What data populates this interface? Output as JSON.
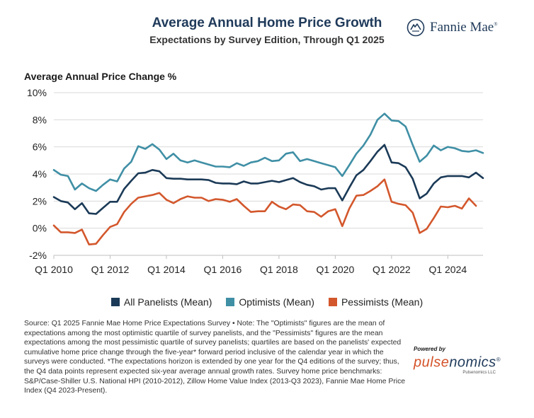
{
  "header": {
    "title": "Average Annual Home Price Growth",
    "subtitle": "Expectations by Survey Edition, Through Q1 2025",
    "brand": "Fannie Mae",
    "brand_mark": "®"
  },
  "chart_data": {
    "type": "line",
    "title": "Average Annual Home Price Growth",
    "subtitle": "Expectations by Survey Edition, Through Q1 2025",
    "ylabel": "Average Annual Price Change %",
    "xlabel": "",
    "ylim": [
      -2,
      10
    ],
    "yticks": [
      -2,
      0,
      2,
      4,
      6,
      8,
      10
    ],
    "ytick_labels": [
      "-2%",
      "0%",
      "2%",
      "4%",
      "6%",
      "8%",
      "10%"
    ],
    "xlim": [
      2010.0,
      2025.25
    ],
    "xticks": [
      2010,
      2012,
      2014,
      2016,
      2018,
      2020,
      2022,
      2024
    ],
    "xtick_labels": [
      "Q1 2010",
      "Q1 2012",
      "Q1 2014",
      "Q1 2016",
      "Q1 2018",
      "Q1 2020",
      "Q1 2022",
      "Q1 2024"
    ],
    "grid": "horizontal",
    "legend_position": "bottom",
    "series": [
      {
        "name": "All Panelists (Mean)",
        "color": "#1b3a57",
        "points": [
          [
            2010.0,
            2.3
          ],
          [
            2010.25,
            2.0
          ],
          [
            2010.5,
            1.9
          ],
          [
            2010.75,
            1.4
          ],
          [
            2011.0,
            1.85
          ],
          [
            2011.25,
            1.1
          ],
          [
            2011.5,
            1.05
          ],
          [
            2011.75,
            1.5
          ],
          [
            2012.0,
            1.95
          ],
          [
            2012.25,
            1.95
          ],
          [
            2012.5,
            2.9
          ],
          [
            2012.75,
            3.5
          ],
          [
            2013.0,
            4.05
          ],
          [
            2013.25,
            4.1
          ],
          [
            2013.5,
            4.3
          ],
          [
            2013.75,
            4.2
          ],
          [
            2014.0,
            3.7
          ],
          [
            2014.25,
            3.65
          ],
          [
            2014.5,
            3.65
          ],
          [
            2014.75,
            3.6
          ],
          [
            2015.0,
            3.6
          ],
          [
            2015.25,
            3.6
          ],
          [
            2015.5,
            3.55
          ],
          [
            2015.75,
            3.35
          ],
          [
            2016.0,
            3.3
          ],
          [
            2016.25,
            3.3
          ],
          [
            2016.5,
            3.25
          ],
          [
            2016.75,
            3.45
          ],
          [
            2017.0,
            3.3
          ],
          [
            2017.25,
            3.3
          ],
          [
            2017.5,
            3.4
          ],
          [
            2017.75,
            3.5
          ],
          [
            2018.0,
            3.4
          ],
          [
            2018.25,
            3.55
          ],
          [
            2018.5,
            3.7
          ],
          [
            2018.75,
            3.4
          ],
          [
            2019.0,
            3.2
          ],
          [
            2019.25,
            3.1
          ],
          [
            2019.5,
            2.85
          ],
          [
            2019.75,
            2.95
          ],
          [
            2020.0,
            2.95
          ],
          [
            2020.25,
            2.05
          ],
          [
            2020.5,
            3.0
          ],
          [
            2020.75,
            3.9
          ],
          [
            2021.0,
            4.3
          ],
          [
            2021.25,
            4.95
          ],
          [
            2021.5,
            5.65
          ],
          [
            2021.75,
            6.15
          ],
          [
            2022.0,
            4.85
          ],
          [
            2022.25,
            4.8
          ],
          [
            2022.5,
            4.5
          ],
          [
            2022.75,
            3.65
          ],
          [
            2023.0,
            2.2
          ],
          [
            2023.25,
            2.55
          ],
          [
            2023.5,
            3.3
          ],
          [
            2023.75,
            3.75
          ],
          [
            2024.0,
            3.85
          ],
          [
            2024.25,
            3.85
          ],
          [
            2024.5,
            3.85
          ],
          [
            2024.75,
            3.75
          ],
          [
            2025.0,
            4.1
          ],
          [
            2025.25,
            3.7
          ]
        ]
      },
      {
        "name": "Optimists (Mean)",
        "color": "#3f8fa5",
        "points": [
          [
            2010.0,
            4.3
          ],
          [
            2010.25,
            3.95
          ],
          [
            2010.5,
            3.85
          ],
          [
            2010.75,
            2.85
          ],
          [
            2011.0,
            3.3
          ],
          [
            2011.25,
            2.95
          ],
          [
            2011.5,
            2.75
          ],
          [
            2011.75,
            3.2
          ],
          [
            2012.0,
            3.6
          ],
          [
            2012.25,
            3.45
          ],
          [
            2012.5,
            4.4
          ],
          [
            2012.75,
            4.9
          ],
          [
            2013.0,
            6.05
          ],
          [
            2013.25,
            5.85
          ],
          [
            2013.5,
            6.2
          ],
          [
            2013.75,
            5.8
          ],
          [
            2014.0,
            5.1
          ],
          [
            2014.25,
            5.5
          ],
          [
            2014.5,
            5.0
          ],
          [
            2014.75,
            4.85
          ],
          [
            2015.0,
            5.0
          ],
          [
            2015.25,
            4.85
          ],
          [
            2015.5,
            4.7
          ],
          [
            2015.75,
            4.55
          ],
          [
            2016.0,
            4.55
          ],
          [
            2016.25,
            4.5
          ],
          [
            2016.5,
            4.8
          ],
          [
            2016.75,
            4.6
          ],
          [
            2017.0,
            4.85
          ],
          [
            2017.25,
            4.95
          ],
          [
            2017.5,
            5.2
          ],
          [
            2017.75,
            4.95
          ],
          [
            2018.0,
            5.0
          ],
          [
            2018.25,
            5.5
          ],
          [
            2018.5,
            5.6
          ],
          [
            2018.75,
            4.95
          ],
          [
            2019.0,
            5.1
          ],
          [
            2019.25,
            4.95
          ],
          [
            2019.5,
            4.8
          ],
          [
            2019.75,
            4.65
          ],
          [
            2020.0,
            4.5
          ],
          [
            2020.25,
            3.85
          ],
          [
            2020.5,
            4.65
          ],
          [
            2020.75,
            5.5
          ],
          [
            2021.0,
            6.1
          ],
          [
            2021.25,
            6.9
          ],
          [
            2021.5,
            8.0
          ],
          [
            2021.75,
            8.45
          ],
          [
            2022.0,
            7.95
          ],
          [
            2022.25,
            7.9
          ],
          [
            2022.5,
            7.5
          ],
          [
            2022.75,
            6.15
          ],
          [
            2023.0,
            4.9
          ],
          [
            2023.25,
            5.35
          ],
          [
            2023.5,
            6.1
          ],
          [
            2023.75,
            5.75
          ],
          [
            2024.0,
            6.0
          ],
          [
            2024.25,
            5.9
          ],
          [
            2024.5,
            5.7
          ],
          [
            2024.75,
            5.65
          ],
          [
            2025.0,
            5.75
          ],
          [
            2025.25,
            5.55
          ]
        ]
      },
      {
        "name": "Pessimists (Mean)",
        "color": "#d3572c",
        "points": [
          [
            2010.0,
            0.2
          ],
          [
            2010.25,
            -0.3
          ],
          [
            2010.5,
            -0.3
          ],
          [
            2010.75,
            -0.35
          ],
          [
            2011.0,
            -0.1
          ],
          [
            2011.25,
            -1.2
          ],
          [
            2011.5,
            -1.15
          ],
          [
            2011.75,
            -0.5
          ],
          [
            2012.0,
            0.1
          ],
          [
            2012.25,
            0.3
          ],
          [
            2012.5,
            1.2
          ],
          [
            2012.75,
            1.8
          ],
          [
            2013.0,
            2.25
          ],
          [
            2013.25,
            2.35
          ],
          [
            2013.5,
            2.45
          ],
          [
            2013.75,
            2.6
          ],
          [
            2014.0,
            2.1
          ],
          [
            2014.25,
            1.85
          ],
          [
            2014.5,
            2.15
          ],
          [
            2014.75,
            2.35
          ],
          [
            2015.0,
            2.25
          ],
          [
            2015.25,
            2.25
          ],
          [
            2015.5,
            2.0
          ],
          [
            2015.75,
            2.15
          ],
          [
            2016.0,
            2.1
          ],
          [
            2016.25,
            1.95
          ],
          [
            2016.5,
            2.15
          ],
          [
            2016.75,
            1.65
          ],
          [
            2017.0,
            1.2
          ],
          [
            2017.25,
            1.25
          ],
          [
            2017.5,
            1.25
          ],
          [
            2017.75,
            1.95
          ],
          [
            2018.0,
            1.6
          ],
          [
            2018.25,
            1.4
          ],
          [
            2018.5,
            1.75
          ],
          [
            2018.75,
            1.7
          ],
          [
            2019.0,
            1.25
          ],
          [
            2019.25,
            1.2
          ],
          [
            2019.5,
            0.85
          ],
          [
            2019.75,
            1.25
          ],
          [
            2020.0,
            1.4
          ],
          [
            2020.25,
            0.15
          ],
          [
            2020.5,
            1.45
          ],
          [
            2020.75,
            2.4
          ],
          [
            2021.0,
            2.45
          ],
          [
            2021.25,
            2.75
          ],
          [
            2021.5,
            3.1
          ],
          [
            2021.75,
            3.6
          ],
          [
            2022.0,
            1.95
          ],
          [
            2022.25,
            1.8
          ],
          [
            2022.5,
            1.7
          ],
          [
            2022.75,
            1.15
          ],
          [
            2023.0,
            -0.35
          ],
          [
            2023.25,
            -0.05
          ],
          [
            2023.5,
            0.75
          ],
          [
            2023.75,
            1.6
          ],
          [
            2024.0,
            1.55
          ],
          [
            2024.25,
            1.65
          ],
          [
            2024.5,
            1.45
          ],
          [
            2024.75,
            2.2
          ],
          [
            2025.0,
            1.65
          ]
        ]
      }
    ]
  },
  "legend": {
    "items": [
      {
        "label": "All Panelists (Mean)",
        "color": "#1b3a57"
      },
      {
        "label": "Optimists (Mean)",
        "color": "#3f8fa5"
      },
      {
        "label": "Pessimists (Mean)",
        "color": "#d3572c"
      }
    ]
  },
  "footer": {
    "note": "Source: Q1 2025 Fannie Mae Home Price Expectations Survey • Note: The \"Optimists\" figures are the mean of expectations among the most optimistic quartile of survey panelists, and the \"Pessimists\" figures are the mean expectations among the most pessimistic quartile of survey panelists; quartiles are based on the panelists' expected cumulative home price change through the five-year* forward period inclusive of the calendar year in which the surveys were conducted. *The expectations horizon is extended by one year for the Q4 editions of the survey; thus, the Q4 data points represent expected six-year average annual growth rates. Survey home price benchmarks: S&P/Case-Shiller U.S. National HPI (2010-2012), Zillow Home Value Index (2013-Q3 2023), Fannie Mae Home Price Index (Q4 2023-Present).",
    "powered_by": "Powered by",
    "pulse_a": "pulse",
    "pulse_b": "nomics",
    "pulse_mark": "®",
    "pulse_llc": "Pulsenomics LLC"
  },
  "icons": {
    "brand": "fannie-mae-logo-icon"
  }
}
